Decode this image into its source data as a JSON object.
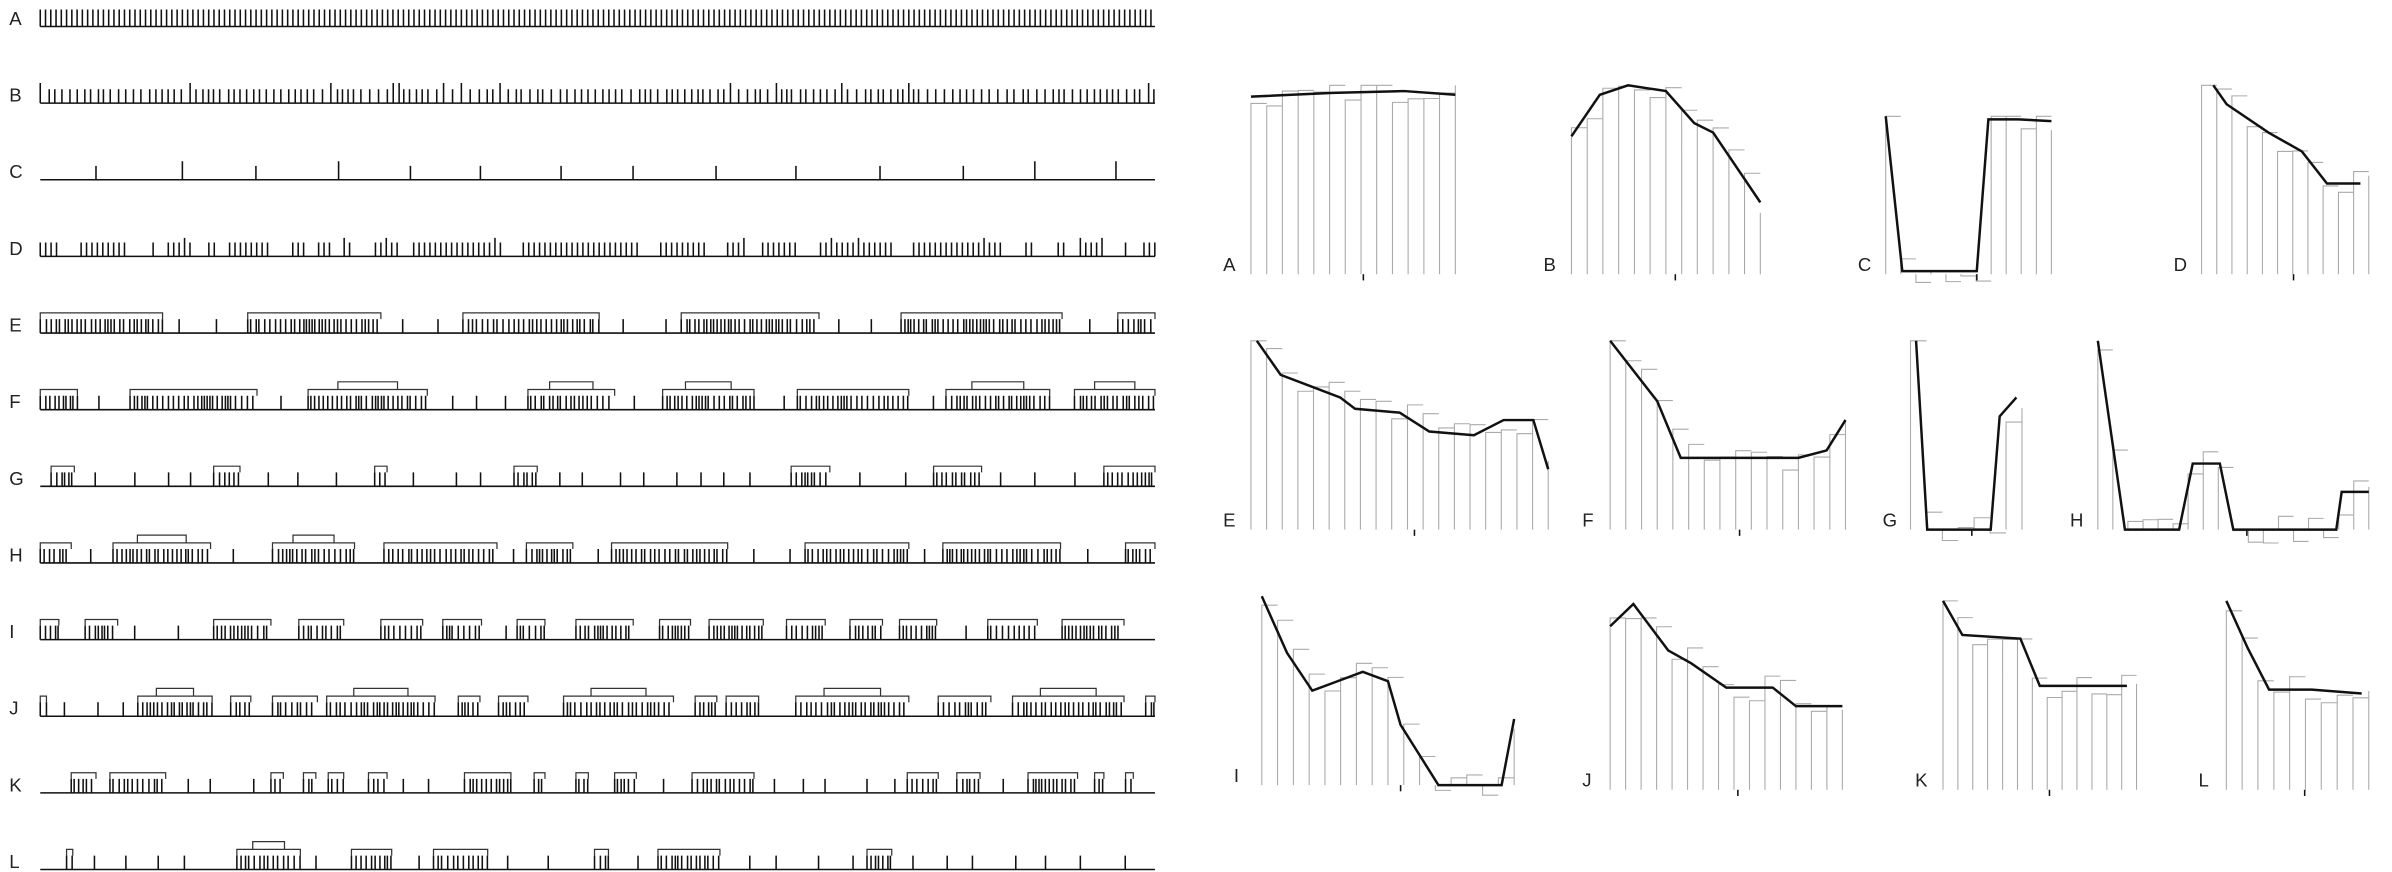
{
  "left_panels": {
    "labels": [
      "A",
      "B",
      "C",
      "D",
      "E",
      "F",
      "G",
      "H",
      "I",
      "J",
      "K",
      "L"
    ]
  },
  "right_panels": {
    "labels": [
      "A",
      "B",
      "C",
      "D",
      "E",
      "F",
      "G",
      "H",
      "I",
      "J",
      "K",
      "L"
    ]
  }
}
